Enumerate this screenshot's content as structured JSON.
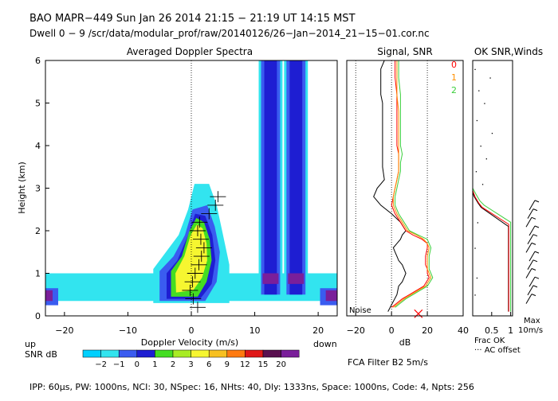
{
  "header": {
    "line1": "BAO  MAPR−449  Sun Jan 26 2014 21:15 − 21:19 UT 14:15 MST",
    "line2": "Dwell  0 − 9   /scr/data/modular_prof/raw/20140126/26−Jan−2014_21−15−01.cor.nc"
  },
  "footer": {
    "params": "IPP:  60μs,  PW: 1000ns,  NCI:  30,  NSpec: 16, NHts: 40,  Dly: 1333ns,  Space: 1000ns,  Code: 4,  Npts: 256"
  },
  "colors": {
    "black": "#000000",
    "red": "#ff0000",
    "orange": "#ff9000",
    "green": "#3ccf3c",
    "cyan": "#32e4ef",
    "blue": "#3a5cf0",
    "navy": "#1e1ed2",
    "lime": "#44dd22",
    "yellow": "#f6f630",
    "purple": "#7a1f9a"
  },
  "chart_data": [
    {
      "type": "heatmap",
      "title": "Averaged Doppler Spectra",
      "xlabel": "Doppler Velocity (m/s)",
      "ylabel": "Height (km)",
      "xlim": [
        -23,
        23
      ],
      "ylim": [
        0,
        6
      ],
      "xticks": [
        -20,
        -10,
        0,
        10,
        20
      ],
      "yticks": [
        0,
        1,
        2,
        3,
        4,
        5,
        6
      ],
      "x_side_labels": {
        "left": "up",
        "right": "down"
      },
      "colorbar": {
        "label": "SNR dB",
        "ticks": [
          "−2",
          "−1",
          "0",
          "1",
          "2",
          "3",
          "6",
          "9",
          "12",
          "15",
          "20"
        ],
        "colors": [
          "#00d0ff",
          "#32e4ef",
          "#3a5cf0",
          "#1e1ed2",
          "#44dd22",
          "#a8ec24",
          "#f6f630",
          "#f7c020",
          "#ff7a10",
          "#e01818",
          "#5a1050",
          "#7a1f9a"
        ]
      },
      "features": [
        {
          "kind": "clutter-band",
          "height_km": [
            0.35,
            1.0
          ],
          "velocity_ms": [
            -23,
            23
          ]
        },
        {
          "kind": "spike",
          "velocity_ms": [
            11,
            14
          ],
          "height_km": [
            0.5,
            6
          ]
        },
        {
          "kind": "spike",
          "velocity_ms": [
            15,
            18
          ],
          "height_km": [
            0.5,
            6
          ]
        },
        {
          "kind": "signal-plume",
          "velocity_ms": [
            -1,
            4
          ],
          "height_km": [
            0.3,
            2.5
          ]
        }
      ],
      "moment_marks": [
        {
          "h": 0.2,
          "v": 1.0
        },
        {
          "h": 0.4,
          "v": 0.3
        },
        {
          "h": 0.6,
          "v": -0.2
        },
        {
          "h": 0.8,
          "v": 0.2
        },
        {
          "h": 1.0,
          "v": 0.6
        },
        {
          "h": 1.2,
          "v": 1.2
        },
        {
          "h": 1.4,
          "v": 1.6
        },
        {
          "h": 1.6,
          "v": 2.0
        },
        {
          "h": 1.8,
          "v": 1.5
        },
        {
          "h": 2.0,
          "v": 1.0
        },
        {
          "h": 2.2,
          "v": 1.3
        },
        {
          "h": 2.4,
          "v": 2.8
        },
        {
          "h": 2.6,
          "v": 3.8
        },
        {
          "h": 2.8,
          "v": 4.2
        }
      ]
    },
    {
      "type": "line",
      "title": "Signal, SNR",
      "xlabel": "dB",
      "xlim": [
        -25,
        40
      ],
      "ylim": [
        0,
        6
      ],
      "xticks": [
        -20,
        0,
        20,
        40
      ],
      "noise_label": "Noise",
      "legend": [
        "0",
        "1",
        "2"
      ],
      "series": [
        {
          "name": "signal",
          "x": [
            -4,
            -6,
            -6,
            -6,
            -5,
            -5,
            -5,
            -5,
            -5,
            -5,
            -5,
            -4,
            -8,
            -10,
            -6,
            0,
            5,
            8,
            6,
            5,
            3,
            1,
            2,
            3,
            4,
            6,
            8,
            7,
            6,
            4,
            3,
            -2
          ],
          "y": [
            6.0,
            5.8,
            5.5,
            5.2,
            5.0,
            4.8,
            4.5,
            4.3,
            4.0,
            3.8,
            3.5,
            3.2,
            3.0,
            2.8,
            2.6,
            2.4,
            2.2,
            2.0,
            1.9,
            1.8,
            1.7,
            1.6,
            1.5,
            1.4,
            1.3,
            1.2,
            1.0,
            0.9,
            0.8,
            0.7,
            0.5,
            0.1
          ]
        },
        {
          "name": "0",
          "x": [
            2,
            2,
            3,
            3,
            3,
            3,
            4,
            4,
            4,
            3,
            2,
            1,
            0,
            2,
            5,
            8,
            12,
            17,
            20,
            20,
            19,
            19,
            19,
            20,
            20,
            21,
            18,
            14,
            10,
            6,
            0
          ],
          "y": [
            6.0,
            5.6,
            5.2,
            4.8,
            4.4,
            4.0,
            3.8,
            3.6,
            3.4,
            3.2,
            3.0,
            2.8,
            2.6,
            2.4,
            2.2,
            2.0,
            1.9,
            1.8,
            1.7,
            1.6,
            1.4,
            1.3,
            1.2,
            1.1,
            1.0,
            0.9,
            0.7,
            0.6,
            0.5,
            0.4,
            0.2
          ]
        },
        {
          "name": "1",
          "x": [
            3,
            3,
            3,
            4,
            4,
            4,
            4,
            4,
            4,
            3,
            2,
            1,
            1,
            3,
            6,
            9,
            14,
            18,
            20,
            21,
            20,
            20,
            20,
            20,
            21,
            22,
            19,
            15,
            11,
            7,
            1
          ],
          "y": [
            6.0,
            5.6,
            5.2,
            4.8,
            4.4,
            4.0,
            3.8,
            3.6,
            3.4,
            3.2,
            3.0,
            2.8,
            2.6,
            2.4,
            2.2,
            2.0,
            1.9,
            1.8,
            1.7,
            1.6,
            1.4,
            1.3,
            1.2,
            1.1,
            1.0,
            0.9,
            0.7,
            0.6,
            0.5,
            0.4,
            0.2
          ]
        },
        {
          "name": "2",
          "x": [
            4,
            4,
            5,
            5,
            5,
            5,
            6,
            5,
            5,
            4,
            3,
            2,
            2,
            4,
            7,
            10,
            15,
            20,
            21,
            22,
            21,
            21,
            21,
            21,
            22,
            23,
            20,
            16,
            12,
            8,
            2
          ],
          "y": [
            6.0,
            5.6,
            5.2,
            4.8,
            4.4,
            4.0,
            3.8,
            3.6,
            3.4,
            3.2,
            3.0,
            2.8,
            2.6,
            2.4,
            2.2,
            2.0,
            1.9,
            1.8,
            1.7,
            1.6,
            1.4,
            1.3,
            1.2,
            1.1,
            1.0,
            0.9,
            0.7,
            0.6,
            0.5,
            0.4,
            0.2
          ]
        }
      ],
      "marker": {
        "symbol": "x",
        "x": 15,
        "y": 0.05
      },
      "filter_label": "FCA Filter B2  5m/s"
    },
    {
      "type": "line",
      "title": "OK SNR,Winds",
      "xlabel": "Frac OK",
      "sublabel": "··· AC offset",
      "xlim": [
        0,
        1.05
      ],
      "ylim": [
        0,
        6
      ],
      "xticks": [
        0.5,
        1
      ],
      "xticklabels": [
        "0.5",
        "1"
      ],
      "series": [
        {
          "name": "ok_black",
          "x": [
            0,
            0,
            0.04,
            0.14,
            0.22,
            0.94,
            0.94,
            0.94
          ],
          "y": [
            6,
            2.9,
            2.8,
            2.65,
            2.55,
            2.1,
            0.5,
            0.1
          ]
        },
        {
          "name": "ok_red",
          "x": [
            0,
            0,
            0.06,
            0.16,
            0.25,
            0.95,
            0.95,
            0.95
          ],
          "y": [
            6,
            2.95,
            2.8,
            2.65,
            2.55,
            2.15,
            0.5,
            0.1
          ]
        },
        {
          "name": "ok_green",
          "x": [
            0,
            0,
            0.09,
            0.19,
            0.3,
            1.0,
            1.0,
            1.0
          ],
          "y": [
            6,
            3.0,
            2.85,
            2.7,
            2.6,
            2.2,
            0.5,
            0.1
          ]
        }
      ],
      "ac_offset_points": [
        {
          "x": 0.05,
          "y": 5.8
        },
        {
          "x": 0.45,
          "y": 5.6
        },
        {
          "x": 0.15,
          "y": 5.3
        },
        {
          "x": 0.3,
          "y": 5.0
        },
        {
          "x": 0.1,
          "y": 4.6
        },
        {
          "x": 0.5,
          "y": 4.3
        },
        {
          "x": 0.2,
          "y": 4.0
        },
        {
          "x": 0.35,
          "y": 3.7
        },
        {
          "x": 0.08,
          "y": 3.4
        },
        {
          "x": 0.25,
          "y": 3.1
        },
        {
          "x": 0.12,
          "y": 2.2
        },
        {
          "x": 0.05,
          "y": 1.6
        },
        {
          "x": 0.1,
          "y": 0.9
        },
        {
          "x": 0.05,
          "y": 0.5
        }
      ]
    },
    {
      "type": "scatter",
      "title": "Winds",
      "xlabel": "Max",
      "xlabel2": "10m/s",
      "ylim": [
        0,
        6
      ],
      "barbs": [
        {
          "h": 0.4
        },
        {
          "h": 0.6
        },
        {
          "h": 0.8
        },
        {
          "h": 1.0
        },
        {
          "h": 1.2
        },
        {
          "h": 1.4
        },
        {
          "h": 1.6
        },
        {
          "h": 1.8
        },
        {
          "h": 2.0
        },
        {
          "h": 2.2
        },
        {
          "h": 2.4
        },
        {
          "h": 2.6
        }
      ]
    }
  ]
}
